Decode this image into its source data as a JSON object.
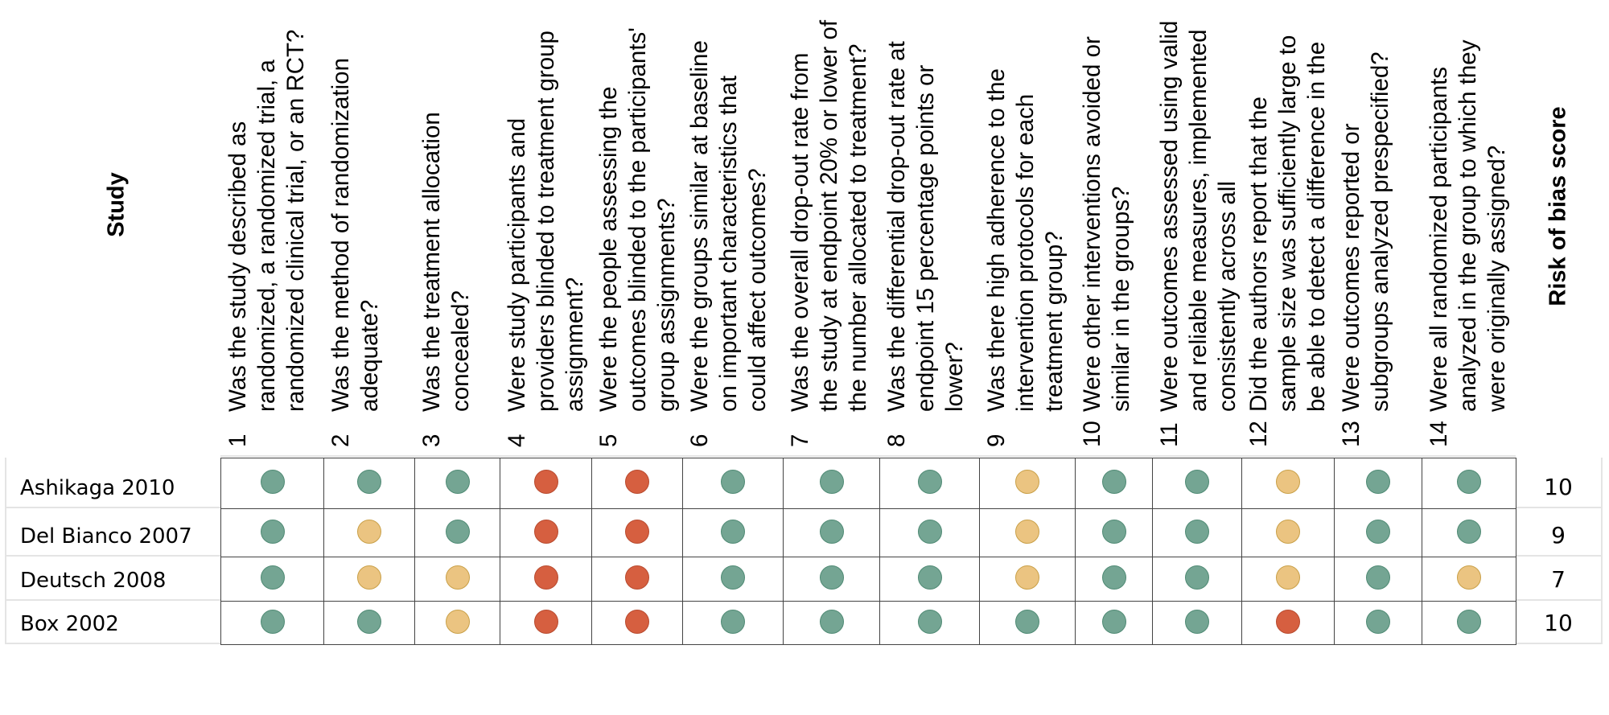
{
  "header": {
    "study_label": "Study",
    "score_label": "Risk of bias score",
    "questions": [
      {
        "num": "1",
        "text": "Was the study described as randomized, a randomized trial, a randomized clinical trial, or an RCT?"
      },
      {
        "num": "2",
        "text": "Was the method of randomization adequate?"
      },
      {
        "num": "3",
        "text": "Was the treatment allocation concealed?"
      },
      {
        "num": "4",
        "text": "Were study participants and providers blinded to treatment group assignment?"
      },
      {
        "num": "5",
        "text": "Were the people assessing the outcomes blinded to the participants' group assignments?"
      },
      {
        "num": "6",
        "text": "Were the groups similar at baseline on important characteristics that could affect outcomes?"
      },
      {
        "num": "7",
        "text": "Was the overall drop-out rate from the study at endpoint 20% or lower of the number allocated to treatment?"
      },
      {
        "num": "8",
        "text": "Was the differential drop-out rate at endpoint 15 percentage points or lower?"
      },
      {
        "num": "9",
        "text": "Was there high adherence to the intervention protocols for each treatment group?"
      },
      {
        "num": "10",
        "text": "Were other interventions avoided or similar in the groups?"
      },
      {
        "num": "11",
        "text": "Were outcomes assessed using valid and reliable measures, implemented consistently across all"
      },
      {
        "num": "12",
        "text": "Did the authors report that the sample size was sufficiently large to be able to detect a difference in the"
      },
      {
        "num": "13",
        "text": "Were outcomes reported or subgroups analyzed prespecified?"
      },
      {
        "num": "14",
        "text": "Were all randomized participants analyzed in the group to which they were originally assigned?"
      }
    ]
  },
  "colors": {
    "low": "#74a593",
    "unclear": "#ebc481",
    "high": "#d65f40"
  },
  "stroke_colors": {
    "low": "#4f8a74",
    "unclear": "#c9a048",
    "high": "#b84a2e"
  },
  "studies": [
    {
      "name": "Ashikaga 2010",
      "score": "10",
      "ratings": [
        "low",
        "low",
        "low",
        "high",
        "high",
        "low",
        "low",
        "low",
        "unclear",
        "low",
        "low",
        "unclear",
        "low",
        "low"
      ]
    },
    {
      "name": "Del Bianco 2007",
      "score": "9",
      "ratings": [
        "low",
        "unclear",
        "low",
        "high",
        "high",
        "low",
        "low",
        "low",
        "unclear",
        "low",
        "low",
        "unclear",
        "low",
        "low"
      ]
    },
    {
      "name": "Deutsch 2008",
      "score": "7",
      "ratings": [
        "low",
        "unclear",
        "unclear",
        "high",
        "high",
        "low",
        "low",
        "low",
        "unclear",
        "low",
        "low",
        "unclear",
        "low",
        "unclear"
      ]
    },
    {
      "name": "Box 2002",
      "score": "10",
      "ratings": [
        "low",
        "low",
        "unclear",
        "high",
        "high",
        "low",
        "low",
        "low",
        "low",
        "low",
        "low",
        "high",
        "low",
        "low"
      ]
    }
  ]
}
